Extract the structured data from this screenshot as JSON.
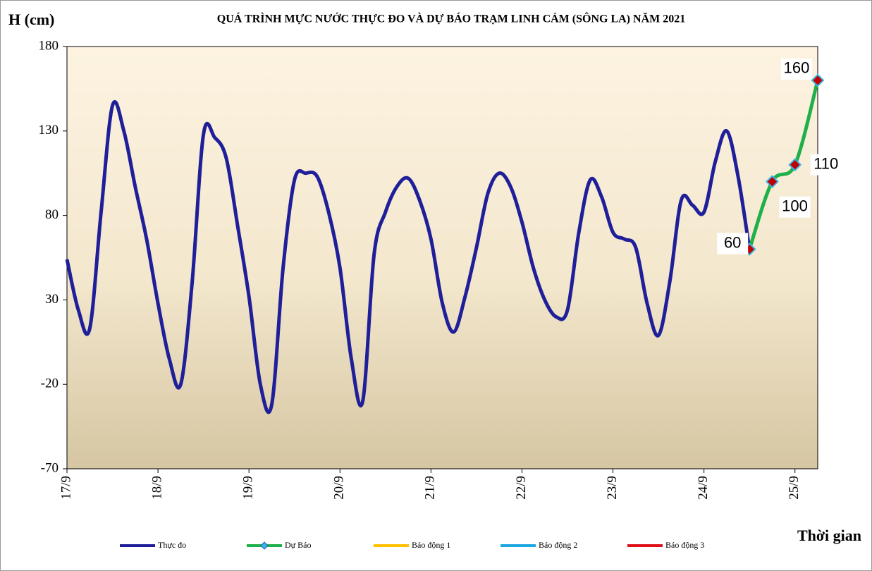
{
  "chart_data": {
    "type": "line",
    "title": "QUÁ TRÌNH  MỰC NƯỚC THỰC ĐO VÀ DỰ BÁO TRẠM  LINH  CẢM (SÔNG LA) NĂM 2021",
    "y_label": "H (cm)",
    "x_label": "Thời gian",
    "xlim": [
      0,
      198
    ],
    "xticks": [
      {
        "value": 0,
        "label": "17/9"
      },
      {
        "value": 24,
        "label": "18/9"
      },
      {
        "value": 48,
        "label": "19/9"
      },
      {
        "value": 72,
        "label": "20/9"
      },
      {
        "value": 96,
        "label": "21/9"
      },
      {
        "value": 120,
        "label": "22/9"
      },
      {
        "value": 144,
        "label": "23/9"
      },
      {
        "value": 168,
        "label": "24/9"
      },
      {
        "value": 192,
        "label": "25/9"
      }
    ],
    "ylim": [
      -70,
      180
    ],
    "yticks": [
      -70,
      -20,
      30,
      80,
      130,
      180
    ],
    "series": [
      {
        "name": "Thực đo",
        "color": "#1f1f9a",
        "x": [
          0,
          3,
          6,
          9,
          12,
          15,
          18,
          21,
          24,
          27,
          30,
          33,
          36,
          39,
          42,
          45,
          48,
          51,
          54,
          57,
          60,
          63,
          66,
          69,
          72,
          75,
          78,
          81,
          84,
          87,
          90,
          93,
          96,
          99,
          102,
          105,
          108,
          111,
          114,
          117,
          120,
          123,
          126,
          129,
          132,
          135,
          138,
          141,
          144,
          147,
          150,
          153,
          156,
          159,
          162,
          165,
          168,
          171,
          174,
          177,
          180
        ],
        "values": [
          54,
          24,
          13,
          82,
          145,
          130,
          97,
          66,
          28,
          -5,
          -20,
          40,
          128,
          126,
          114,
          74,
          32,
          -20,
          -32,
          49,
          101,
          105,
          103,
          82,
          49,
          -5,
          -30,
          57,
          82,
          97,
          102,
          89,
          66,
          28,
          11,
          32,
          61,
          93,
          105,
          97,
          76,
          49,
          30,
          20,
          24,
          70,
          101,
          91,
          70,
          66,
          61,
          28,
          9,
          41,
          89,
          86,
          82,
          112,
          130,
          103,
          60
        ]
      },
      {
        "name": "Dự Báo",
        "color": "#1fb04a",
        "x": [
          180,
          186,
          192,
          198
        ],
        "values": [
          60,
          100,
          110,
          160
        ],
        "markers": true
      }
    ],
    "legend_only": [
      {
        "name": "Báo động 1",
        "color": "#ffc000"
      },
      {
        "name": "Báo động 2",
        "color": "#1ea7e1"
      },
      {
        "name": "Báo động 3",
        "color": "#e0101a"
      }
    ]
  }
}
